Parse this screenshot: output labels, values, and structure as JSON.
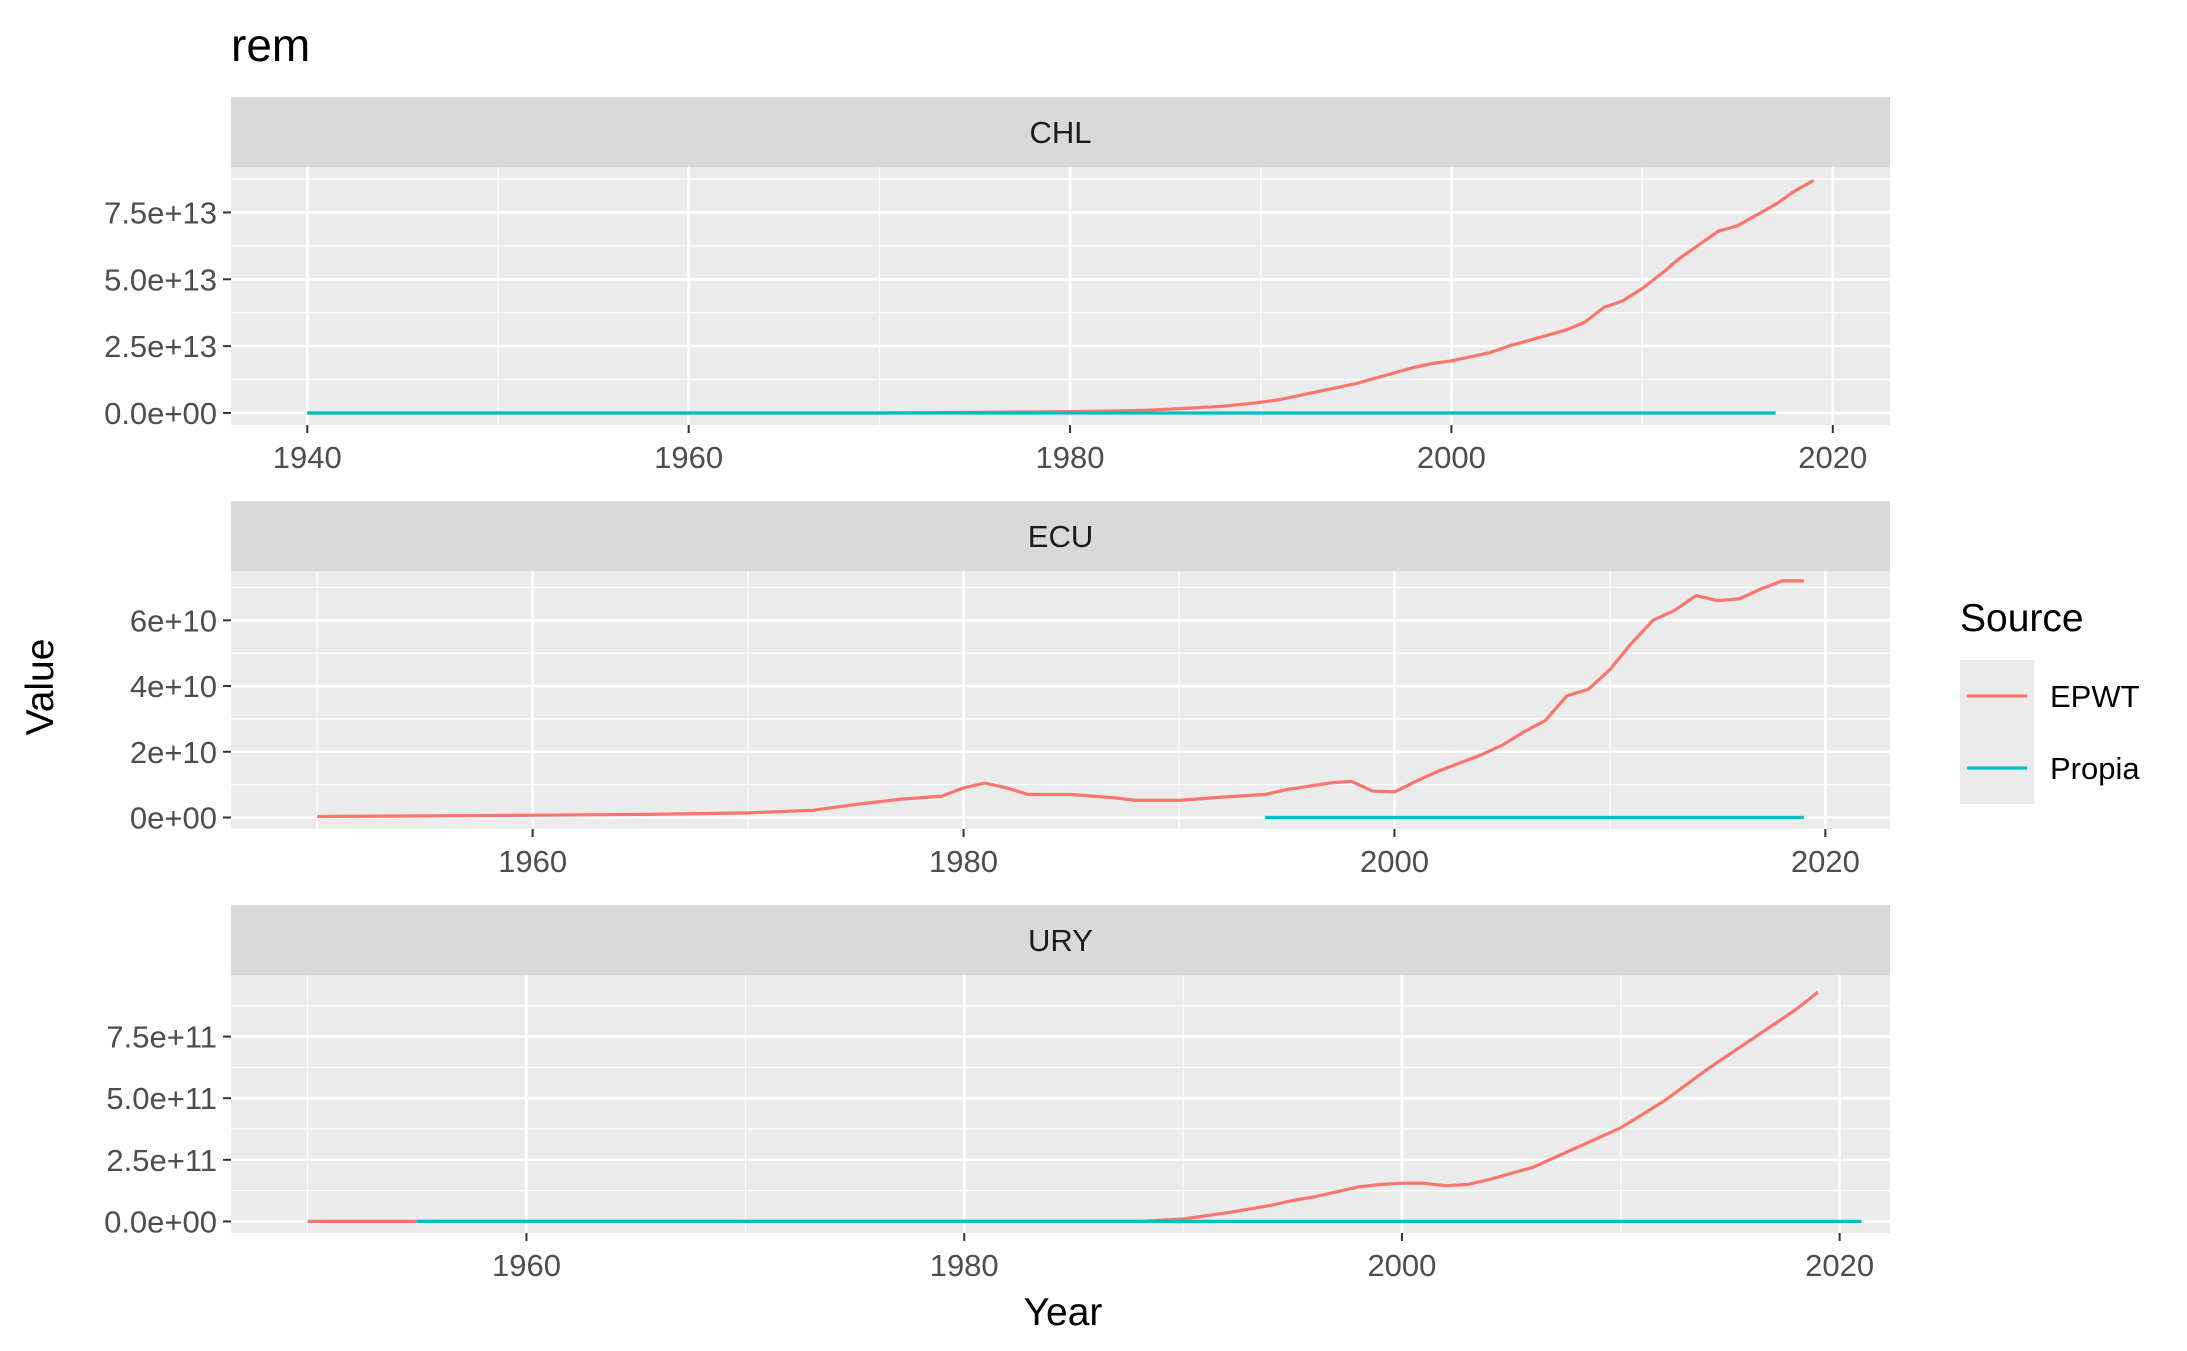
{
  "title": "rem",
  "colors": {
    "EPWT": "#F8766D",
    "Propia": "#00BFC4",
    "panel_bg": "#EBEBEB",
    "strip_bg": "#D9D9D9",
    "grid": "#FFFFFF"
  },
  "chart_data": {
    "type": "line",
    "title": "rem",
    "xlabel": "Year",
    "ylabel": "Value",
    "legend": {
      "title": "Source",
      "position": "right",
      "entries": [
        "EPWT",
        "Propia"
      ]
    },
    "grid": true,
    "facets": [
      {
        "label": "CHL",
        "xlim": [
          1936,
          2023
        ],
        "ylim": [
          -4500000000000,
          92000000000000
        ],
        "x_ticks": [
          1940,
          1960,
          1980,
          2000,
          2020
        ],
        "x_tick_labels": [
          "1940",
          "1960",
          "1980",
          "2000",
          "2020"
        ],
        "y_ticks": [
          0,
          25000000000000,
          50000000000000,
          75000000000000
        ],
        "y_tick_labels": [
          "0.0e+00",
          "2.5e+13",
          "5.0e+13",
          "7.5e+13"
        ],
        "series": [
          {
            "name": "EPWT",
            "x": [
              1940,
              1950,
              1960,
              1970,
              1975,
              1980,
              1982,
              1984,
              1986,
              1988,
              1990,
              1991,
              1992,
              1993,
              1994,
              1995,
              1996,
              1997,
              1998,
              1999,
              2000,
              2001,
              2002,
              2003,
              2004,
              2005,
              2006,
              2007,
              2008,
              2009,
              2010,
              2011,
              2012,
              2013,
              2014,
              2015,
              2016,
              2017,
              2018,
              2019
            ],
            "y": [
              0,
              0,
              0,
              0,
              200000000000,
              500000000000,
              700000000000,
              1000000000000,
              1700000000000,
              2500000000000,
              4000000000000,
              5000000000000,
              6500000000000,
              8000000000000,
              9500000000000,
              11000000000000,
              13000000000000,
              15000000000000,
              17000000000000,
              18500000000000,
              19500000000000,
              21000000000000,
              22500000000000,
              25000000000000,
              27000000000000,
              29000000000000,
              31000000000000,
              34000000000000,
              39500000000000,
              42000000000000,
              46500000000000,
              52000000000000,
              58000000000000,
              63000000000000,
              68000000000000,
              70000000000000,
              74000000000000,
              78000000000000,
              83000000000000,
              87000000000000
            ]
          },
          {
            "name": "Propia",
            "x": [
              1940,
              2017
            ],
            "y": [
              0,
              0
            ]
          }
        ]
      },
      {
        "label": "ECU",
        "xlim": [
          1946,
          2023
        ],
        "ylim": [
          -3500000000,
          75000000000
        ],
        "x_ticks": [
          1960,
          1980,
          2000,
          2020
        ],
        "x_tick_labels": [
          "1960",
          "1980",
          "2000",
          "2020"
        ],
        "y_ticks": [
          0,
          20000000000,
          40000000000,
          60000000000
        ],
        "y_tick_labels": [
          "0e+00",
          "2e+10",
          "4e+10",
          "6e+10"
        ],
        "series": [
          {
            "name": "EPWT",
            "x": [
              1950,
              1955,
              1960,
              1965,
              1970,
              1973,
              1975,
              1977,
              1979,
              1980,
              1981,
              1982,
              1983,
              1985,
              1987,
              1988,
              1990,
              1992,
              1994,
              1995,
              1996,
              1997,
              1998,
              1999,
              2000,
              2001,
              2002,
              2003,
              2004,
              2005,
              2006,
              2007,
              2008,
              2009,
              2010,
              2011,
              2012,
              2013,
              2014,
              2015,
              2016,
              2017,
              2018,
              2019
            ],
            "y": [
              300000000,
              500000000,
              700000000,
              900000000,
              1400000000,
              2200000000,
              4000000000,
              5500000000,
              6500000000,
              9000000000,
              10500000000,
              9000000000,
              7000000000,
              7000000000,
              6000000000,
              5200000000,
              5200000000,
              6200000000,
              7000000000,
              8500000000,
              9500000000,
              10500000000,
              11000000000,
              8000000000,
              7800000000,
              11000000000,
              14000000000,
              16500000000,
              19000000000,
              22000000000,
              26000000000,
              29500000000,
              37000000000,
              39000000000,
              45000000000,
              53000000000,
              60000000000,
              63000000000,
              67500000000,
              66000000000,
              66500000000,
              69500000000,
              72000000000,
              72000000000
            ]
          },
          {
            "name": "Propia",
            "x": [
              1994,
              2019
            ],
            "y": [
              0,
              0
            ]
          }
        ]
      },
      {
        "label": "URY",
        "xlim": [
          1946.5,
          2022.3
        ],
        "ylim": [
          -47000000000,
          1000000000000
        ],
        "x_ticks": [
          1960,
          1980,
          2000,
          2020
        ],
        "x_tick_labels": [
          "1960",
          "1980",
          "2000",
          "2020"
        ],
        "y_ticks": [
          0,
          250000000000,
          500000000000,
          750000000000
        ],
        "y_tick_labels": [
          "0.0e+00",
          "2.5e+11",
          "5.0e+11",
          "7.5e+11"
        ],
        "series": [
          {
            "name": "EPWT",
            "x": [
              1950,
              1960,
              1970,
              1980,
              1988,
              1990,
              1992,
              1994,
              1995,
              1996,
              1998,
              1999,
              2000,
              2001,
              2002,
              2003,
              2004,
              2006,
              2008,
              2010,
              2012,
              2014,
              2016,
              2018,
              2019
            ],
            "y": [
              0,
              0,
              0,
              0,
              0,
              10000000000,
              35000000000,
              65000000000,
              85000000000,
              100000000000,
              140000000000,
              150000000000,
              155000000000,
              155000000000,
              145000000000,
              150000000000,
              170000000000,
              220000000000,
              300000000000,
              380000000000,
              490000000000,
              620000000000,
              740000000000,
              860000000000,
              930000000000
            ]
          },
          {
            "name": "Propia",
            "x": [
              1955,
              2021
            ],
            "y": [
              0,
              0
            ]
          }
        ]
      }
    ]
  }
}
